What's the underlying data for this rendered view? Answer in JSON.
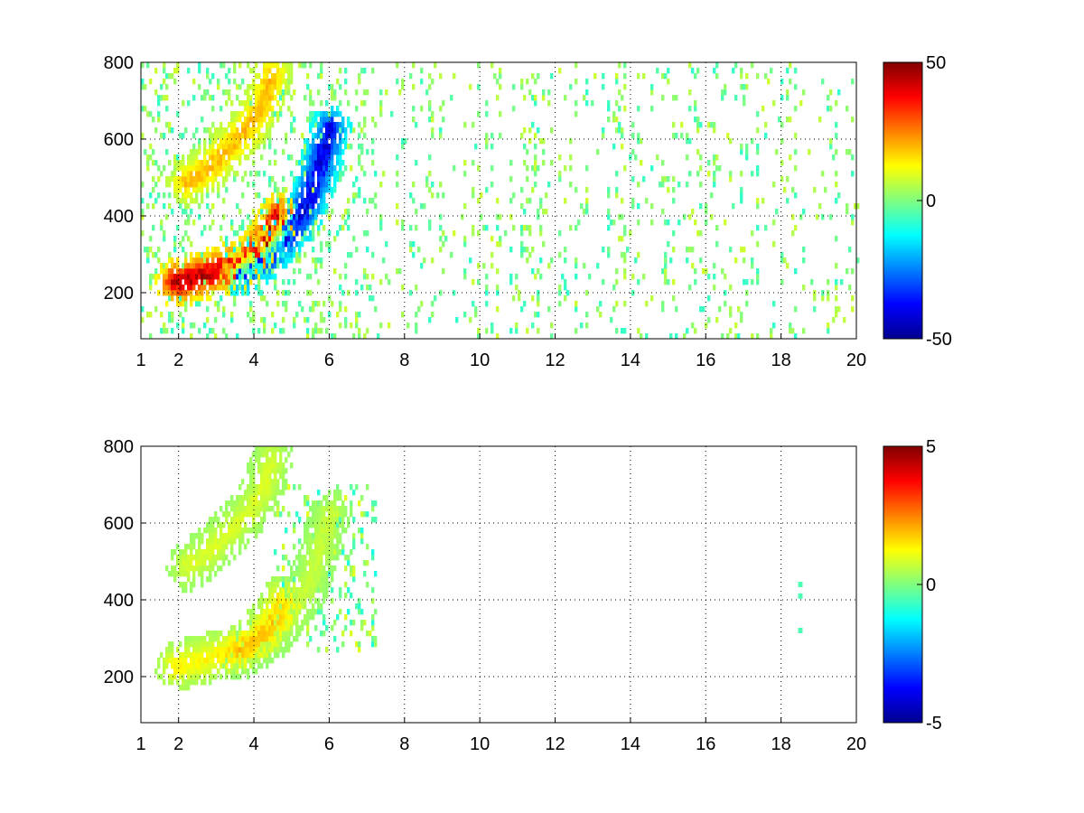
{
  "chart_data": [
    {
      "type": "heatmap",
      "title": "",
      "xlabel": "",
      "ylabel": "",
      "xlim": [
        1,
        20
      ],
      "ylim": [
        80,
        800
      ],
      "xticks": [
        1,
        2,
        4,
        6,
        8,
        10,
        12,
        14,
        16,
        18,
        20
      ],
      "yticks": [
        200,
        400,
        600,
        800
      ],
      "grid": true,
      "colormap": "jet",
      "clim": [
        -50,
        50
      ],
      "colorbar_ticks": [
        -50,
        0,
        50
      ],
      "features": [
        {
          "name": "lower band",
          "path": [
            [
              1.9,
              220
            ],
            [
              2.5,
              235
            ],
            [
              3.0,
              250
            ],
            [
              3.5,
              265
            ],
            [
              4.0,
              295
            ],
            [
              4.4,
              340
            ],
            [
              4.65,
              390
            ]
          ],
          "peak": 50
        },
        {
          "name": "upper band",
          "path": [
            [
              2.2,
              480
            ],
            [
              2.8,
              520
            ],
            [
              3.3,
              570
            ],
            [
              3.8,
              620
            ],
            [
              4.2,
              680
            ],
            [
              4.45,
              760
            ]
          ],
          "peak": 22
        },
        {
          "name": "negative band",
          "path": [
            [
              3.6,
              250
            ],
            [
              4.3,
              290
            ],
            [
              5.0,
              360
            ],
            [
              5.4,
              430
            ],
            [
              5.7,
              520
            ],
            [
              6.0,
              620
            ]
          ],
          "peak": -45
        }
      ],
      "noise_levels": [
        -8,
        8
      ]
    },
    {
      "type": "heatmap",
      "title": "",
      "xlabel": "",
      "ylabel": "",
      "xlim": [
        1,
        20
      ],
      "ylim": [
        80,
        800
      ],
      "xticks": [
        1,
        2,
        4,
        6,
        8,
        10,
        12,
        14,
        16,
        18,
        20
      ],
      "yticks": [
        200,
        400,
        600,
        800
      ],
      "grid": true,
      "colormap": "jet",
      "clim": [
        -5,
        5
      ],
      "colorbar_ticks": [
        -5,
        0,
        5
      ],
      "features": [
        {
          "name": "lower band",
          "path": [
            [
              1.9,
              220
            ],
            [
              2.5,
              235
            ],
            [
              3.0,
              250
            ],
            [
              3.5,
              265
            ],
            [
              4.0,
              295
            ],
            [
              4.4,
              340
            ],
            [
              4.65,
              390
            ]
          ],
          "peak": 1.5
        },
        {
          "name": "upper band",
          "path": [
            [
              2.2,
              480
            ],
            [
              2.8,
              520
            ],
            [
              3.3,
              570
            ],
            [
              3.8,
              620
            ],
            [
              4.2,
              680
            ],
            [
              4.45,
              760
            ]
          ],
          "peak": 1.0
        },
        {
          "name": "negative band",
          "path": [
            [
              3.6,
              250
            ],
            [
              4.3,
              290
            ],
            [
              5.0,
              360
            ],
            [
              5.4,
              430
            ],
            [
              5.7,
              520
            ],
            [
              6.0,
              620
            ]
          ],
          "peak": 0.8
        }
      ],
      "isolated_points": [
        [
          18.5,
          440
        ],
        [
          18.5,
          410
        ],
        [
          18.5,
          320
        ]
      ],
      "noise_levels": [
        -1,
        1
      ]
    }
  ]
}
